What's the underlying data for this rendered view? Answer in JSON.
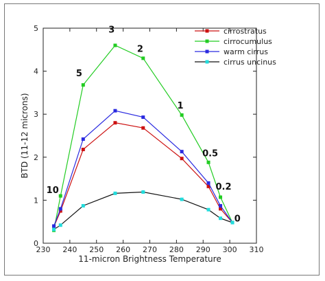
{
  "chart_data": {
    "type": "line",
    "title": "",
    "xlabel": "11-micron Brightness Temperature",
    "ylabel": "BTD (11-12  microns)",
    "xlim": [
      230,
      310
    ],
    "ylim": [
      0,
      5
    ],
    "xticks": [
      230,
      240,
      250,
      260,
      270,
      280,
      290,
      300,
      310
    ],
    "yticks": [
      0,
      1,
      2,
      3,
      4,
      5
    ],
    "grid": false,
    "legend_position": "top-right",
    "series": [
      {
        "name": "cirrostratus",
        "color": "#cc1111",
        "x": [
          234,
          236.5,
          245,
          257,
          267.5,
          282,
          292,
          296.5,
          301
        ],
        "y": [
          0.38,
          0.75,
          2.18,
          2.8,
          2.68,
          1.97,
          1.32,
          0.8,
          0.48
        ]
      },
      {
        "name": "cirrocumulus",
        "color": "#22cc22",
        "x": [
          234,
          236.5,
          245,
          257,
          267.5,
          282,
          292,
          296.5,
          301
        ],
        "y": [
          0.3,
          1.1,
          3.68,
          4.6,
          4.3,
          2.98,
          1.88,
          1.07,
          0.48
        ]
      },
      {
        "name": "warm cirrus",
        "color": "#2a2ae0",
        "x": [
          234,
          236.5,
          245,
          257,
          267.5,
          282,
          292,
          296.5,
          301
        ],
        "y": [
          0.4,
          0.8,
          2.42,
          3.08,
          2.93,
          2.13,
          1.4,
          0.87,
          0.48
        ]
      },
      {
        "name": "cirrus uncinus",
        "color": "#111111",
        "marker_color": "#22dddd",
        "x": [
          234,
          236.5,
          245,
          257,
          267.5,
          282,
          292,
          296.5,
          301
        ],
        "y": [
          0.32,
          0.42,
          0.87,
          1.16,
          1.19,
          1.02,
          0.78,
          0.58,
          0.48
        ]
      }
    ],
    "annotations": [
      {
        "text": "10",
        "x": 231.2,
        "y": 1.17
      },
      {
        "text": "5",
        "x": 242.3,
        "y": 3.88
      },
      {
        "text": "3",
        "x": 254.5,
        "y": 4.9
      },
      {
        "text": "2",
        "x": 265.2,
        "y": 4.45
      },
      {
        "text": "1",
        "x": 280.3,
        "y": 3.13
      },
      {
        "text": "0.5",
        "x": 289.7,
        "y": 2.02
      },
      {
        "text": "0.2",
        "x": 294.7,
        "y": 1.25
      },
      {
        "text": "0",
        "x": 301.7,
        "y": 0.5
      }
    ]
  }
}
